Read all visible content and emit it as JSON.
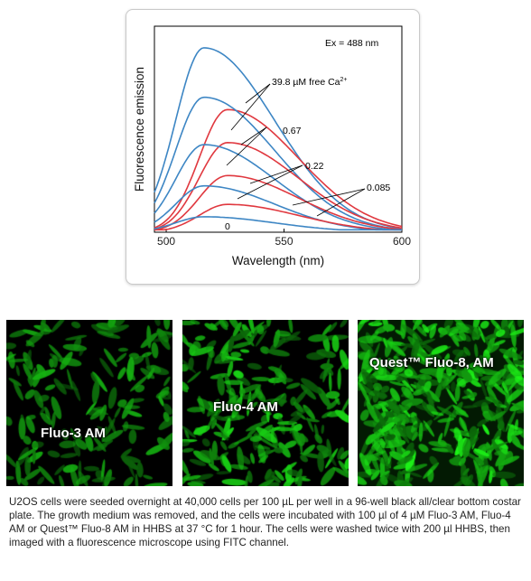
{
  "chart_data": {
    "type": "line",
    "xlabel": "Wavelength (nm)",
    "ylabel": "Fluorescence emission",
    "xlim": [
      495,
      600
    ],
    "ylim": [
      0,
      1
    ],
    "xticks": [
      500,
      550,
      600
    ],
    "grid": false,
    "annotations": {
      "excitation": "Ex = 488 nm",
      "top_label_prefix": "39.8 µM free Ca",
      "top_label_superscript": "2+",
      "labels": [
        "0.67",
        "0.22",
        "0.085",
        "0"
      ]
    },
    "colors": {
      "blue": "#3d86c4",
      "red": "#e0383f"
    },
    "series": [
      {
        "color": "blue",
        "peak_wavelength": 516,
        "peak": 0.895
      },
      {
        "color": "red",
        "peak_wavelength": 526,
        "peak": 0.595
      },
      {
        "color": "blue",
        "peak_wavelength": 516,
        "peak": 0.655
      },
      {
        "color": "red",
        "peak_wavelength": 526,
        "peak": 0.435
      },
      {
        "color": "blue",
        "peak_wavelength": 516,
        "peak": 0.425
      },
      {
        "color": "red",
        "peak_wavelength": 526,
        "peak": 0.275
      },
      {
        "color": "blue",
        "peak_wavelength": 516,
        "peak": 0.225
      },
      {
        "color": "red",
        "peak_wavelength": 526,
        "peak": 0.135
      },
      {
        "color": "blue",
        "peak_wavelength": 516,
        "peak": 0.075
      }
    ]
  },
  "images": [
    {
      "label": "Fluo-3 AM"
    },
    {
      "label": "Fluo-4 AM"
    },
    {
      "label": "Quest™ Fluo-8, AM"
    }
  ],
  "caption": "U2OS cells were seeded overnight at 40,000 cells per 100 µL per well in a 96-well black all/clear bottom costar plate.  The growth medium was removed, and the cells were incubated with 100 µl of 4 µM Fluo-3 AM, Fluo-4 AM or Quest™ Fluo-8 AM in HHBS at 37 °C for 1 hour. The cells were washed twice with 200 µl HHBS, then imaged with a fluorescence microscope using FITC channel."
}
